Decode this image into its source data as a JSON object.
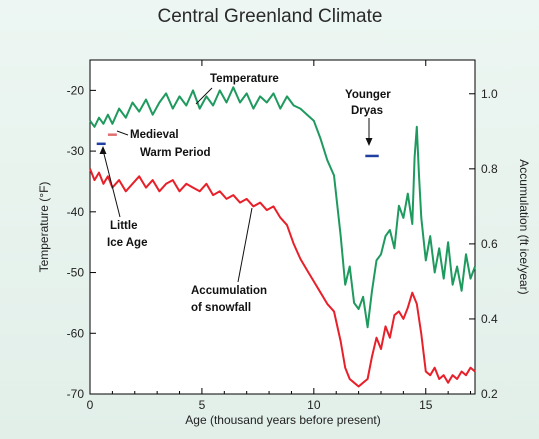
{
  "chart_data": {
    "type": "line",
    "title": "Central Greenland Climate",
    "xlabel": "Age (thousand years before present)",
    "ylabel_left": "Temperature (°F)",
    "ylabel_right": "Accumulation (ft ice/year)",
    "xlim": [
      0,
      17.2
    ],
    "ylim_left": [
      -70,
      -15
    ],
    "ylim_right": [
      0.2,
      1.09
    ],
    "x_ticks": [
      0,
      5,
      10,
      15
    ],
    "x_tick_labels": [
      "0",
      "5",
      "10",
      "15"
    ],
    "y_left_ticks": [
      -20,
      -30,
      -40,
      -50,
      -60,
      -70
    ],
    "y_left_tick_labels": [
      "-20",
      "-30",
      "-40",
      "-50",
      "-60",
      "-70"
    ],
    "y_right_ticks": [
      1.0,
      0.8,
      0.6,
      0.4,
      0.2
    ],
    "y_right_tick_labels": [
      "1.0",
      "0.8",
      "0.6",
      "0.4",
      "0.2"
    ],
    "grid": false,
    "series": [
      {
        "name": "Temperature",
        "axis": "left",
        "color": "#1f9a5f",
        "x": [
          0,
          0.2,
          0.4,
          0.6,
          0.8,
          1.0,
          1.3,
          1.6,
          1.9,
          2.2,
          2.5,
          2.8,
          3.1,
          3.4,
          3.7,
          4.0,
          4.3,
          4.6,
          4.9,
          5.2,
          5.5,
          5.8,
          6.1,
          6.4,
          6.7,
          7.0,
          7.3,
          7.6,
          7.9,
          8.2,
          8.5,
          8.8,
          9.1,
          9.4,
          9.7,
          10.0,
          10.3,
          10.6,
          10.9,
          11.2,
          11.4,
          11.6,
          11.8,
          12.0,
          12.2,
          12.4,
          12.6,
          12.8,
          13.0,
          13.2,
          13.4,
          13.6,
          13.8,
          14.0,
          14.2,
          14.4,
          14.5,
          14.6,
          14.7,
          14.8,
          15.0,
          15.2,
          15.4,
          15.6,
          15.8,
          16.0,
          16.2,
          16.4,
          16.6,
          16.8,
          17.0,
          17.2
        ],
        "y": [
          -25,
          -26,
          -24.5,
          -25.5,
          -24,
          -25.5,
          -23,
          -24.5,
          -22,
          -23.5,
          -21.5,
          -24,
          -22,
          -20.5,
          -23,
          -21,
          -22.5,
          -20,
          -23,
          -21,
          -22.5,
          -20,
          -22,
          -19.5,
          -22,
          -20.5,
          -23,
          -21,
          -22,
          -20.5,
          -23,
          -21,
          -22.5,
          -23,
          -24,
          -25,
          -28,
          -31.5,
          -34,
          -44,
          -52,
          -49,
          -55,
          -56,
          -54,
          -59,
          -53,
          -48,
          -47,
          -44,
          -43,
          -46,
          -39,
          -41,
          -37,
          -42,
          -31,
          -26,
          -34,
          -41,
          -48,
          -44,
          -50,
          -46,
          -51,
          -45,
          -52,
          -49,
          -53,
          -47,
          -51,
          -49
        ]
      },
      {
        "name": "Accumulation of snowfall",
        "axis": "right",
        "color": "#e8202a",
        "x": [
          0,
          0.2,
          0.4,
          0.6,
          0.8,
          1.0,
          1.3,
          1.6,
          1.9,
          2.2,
          2.5,
          2.8,
          3.1,
          3.4,
          3.7,
          4.0,
          4.3,
          4.6,
          4.9,
          5.2,
          5.5,
          5.8,
          6.1,
          6.4,
          6.7,
          7.0,
          7.3,
          7.6,
          7.9,
          8.2,
          8.5,
          8.8,
          9.1,
          9.4,
          9.7,
          10.0,
          10.3,
          10.6,
          10.9,
          11.2,
          11.4,
          11.6,
          11.8,
          12.0,
          12.2,
          12.4,
          12.6,
          12.8,
          13.0,
          13.2,
          13.4,
          13.6,
          13.8,
          14.0,
          14.2,
          14.4,
          14.6,
          14.8,
          15.0,
          15.2,
          15.4,
          15.6,
          15.8,
          16.0,
          16.2,
          16.4,
          16.6,
          16.8,
          17.0,
          17.2
        ],
        "y": [
          0.8,
          0.77,
          0.79,
          0.76,
          0.78,
          0.75,
          0.77,
          0.74,
          0.76,
          0.78,
          0.75,
          0.77,
          0.74,
          0.76,
          0.77,
          0.74,
          0.76,
          0.75,
          0.74,
          0.76,
          0.73,
          0.74,
          0.72,
          0.73,
          0.71,
          0.72,
          0.7,
          0.71,
          0.69,
          0.7,
          0.67,
          0.65,
          0.6,
          0.56,
          0.53,
          0.5,
          0.47,
          0.44,
          0.42,
          0.34,
          0.27,
          0.24,
          0.23,
          0.22,
          0.23,
          0.24,
          0.3,
          0.35,
          0.32,
          0.38,
          0.35,
          0.41,
          0.42,
          0.4,
          0.43,
          0.47,
          0.44,
          0.36,
          0.26,
          0.25,
          0.27,
          0.24,
          0.25,
          0.23,
          0.25,
          0.24,
          0.26,
          0.25,
          0.27,
          0.26
        ]
      }
    ],
    "markers": [
      {
        "name": "Medieval Warm Period",
        "color": "#e07070",
        "x": [
          0.8,
          1.2
        ],
        "y_left": -27.3
      },
      {
        "name": "Little Ice Age",
        "color": "#2040a0",
        "x": [
          0.3,
          0.7
        ],
        "y_left": -28.8
      },
      {
        "name": "Younger Dryas",
        "color": "#2040a0",
        "x": [
          12.3,
          12.9
        ],
        "y_left": -30.8
      }
    ],
    "annotations": [
      {
        "text": "Temperature"
      },
      {
        "text": "Medieval"
      },
      {
        "text": "Warm Period"
      },
      {
        "text": "Little"
      },
      {
        "text": "Ice Age"
      },
      {
        "text": "Younger"
      },
      {
        "text": "Dryas"
      },
      {
        "text": "Accumulation"
      },
      {
        "text": "of snowfall"
      }
    ]
  }
}
